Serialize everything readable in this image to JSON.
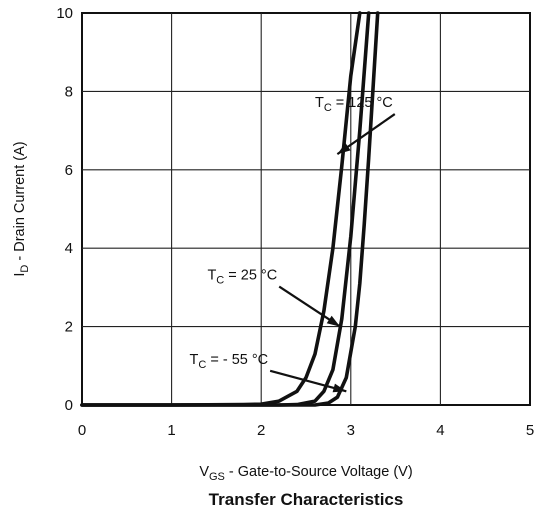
{
  "chart_data": {
    "type": "line",
    "title": "Transfer Characteristics",
    "xlabel": {
      "main": "V",
      "sub": "GS",
      "rest": " - Gate-to-Source Voltage (V)"
    },
    "ylabel": {
      "main": "I",
      "sub": "D",
      "rest": " - Drain Current (A)"
    },
    "xlim": [
      0,
      5
    ],
    "ylim": [
      0,
      10
    ],
    "xticks": [
      0,
      1,
      2,
      3,
      4,
      5
    ],
    "yticks": [
      0,
      2,
      4,
      6,
      8,
      10
    ],
    "xtick_labels": [
      "0",
      "1",
      "2",
      "3",
      "4",
      "5"
    ],
    "ytick_labels": [
      "0",
      "2",
      "4",
      "6",
      "8",
      "10"
    ],
    "grid": true,
    "series": [
      {
        "name": "125",
        "x": [
          0.0,
          1.0,
          1.8,
          2.0,
          2.2,
          2.4,
          2.5,
          2.6,
          2.7,
          2.8,
          2.9,
          3.0,
          3.1
        ],
        "y": [
          0.0,
          0.0,
          0.01,
          0.02,
          0.1,
          0.35,
          0.7,
          1.3,
          2.4,
          4.0,
          6.1,
          8.4,
          10.0
        ]
      },
      {
        "name": "25",
        "x": [
          0.0,
          2.2,
          2.4,
          2.6,
          2.7,
          2.8,
          2.9,
          3.0,
          3.1,
          3.2
        ],
        "y": [
          0.0,
          0.0,
          0.01,
          0.1,
          0.35,
          0.9,
          2.2,
          4.3,
          7.0,
          10.0
        ]
      },
      {
        "name": "-55",
        "x": [
          0.0,
          2.6,
          2.75,
          2.85,
          2.95,
          3.05,
          3.1,
          3.15,
          3.2,
          3.3
        ],
        "y": [
          0.0,
          0.0,
          0.05,
          0.2,
          0.7,
          2.0,
          3.1,
          4.6,
          6.3,
          10.0
        ]
      }
    ],
    "annotations": [
      {
        "main": "T",
        "sub": "C",
        "rest": " = 125 °C",
        "series": "125",
        "x": 2.6,
        "y": 7.6,
        "arrow_to": [
          2.85,
          6.4
        ]
      },
      {
        "main": "T",
        "sub": "C",
        "rest": " = 25 °C",
        "series": "25",
        "x": 1.4,
        "y": 3.2,
        "arrow_to": [
          2.88,
          2.0
        ]
      },
      {
        "main": "T",
        "sub": "C",
        "rest": " = - 55 °C",
        "series": "-55",
        "x": 1.2,
        "y": 1.05,
        "arrow_to": [
          2.95,
          0.35
        ]
      }
    ]
  }
}
